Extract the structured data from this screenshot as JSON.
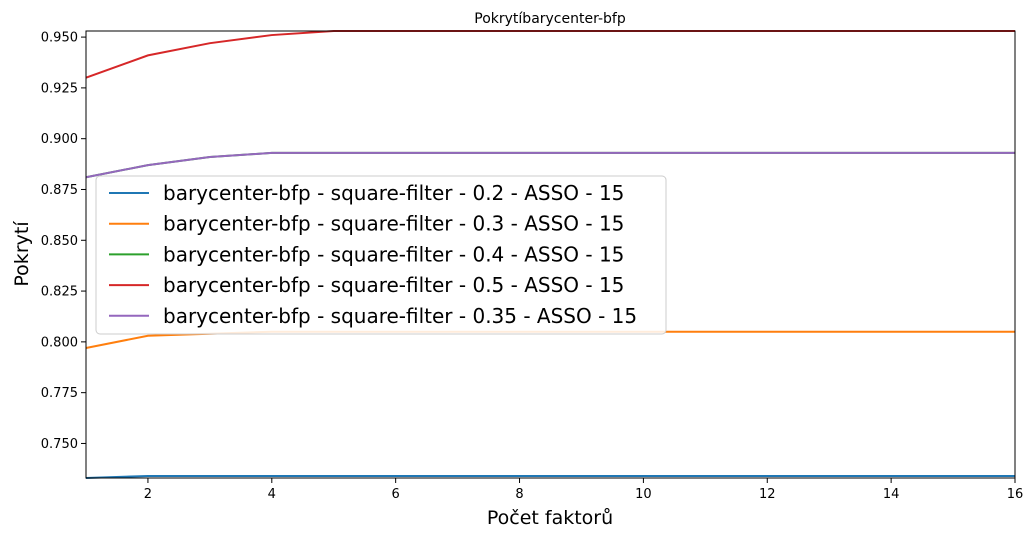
{
  "chart_data": {
    "type": "line",
    "title": "Pokrytíbarycenter-bfp",
    "xlabel": "Počet faktorů",
    "ylabel": "Pokrytí",
    "xlim": [
      1,
      16
    ],
    "ylim": [
      0.733,
      0.953
    ],
    "xticks": [
      2,
      4,
      6,
      8,
      10,
      12,
      14,
      16
    ],
    "yticks": [
      0.75,
      0.775,
      0.8,
      0.825,
      0.85,
      0.875,
      0.9,
      0.925,
      0.95
    ],
    "ytick_labels": [
      "0.750",
      "0.775",
      "0.800",
      "0.825",
      "0.850",
      "0.875",
      "0.900",
      "0.925",
      "0.950"
    ],
    "grid": false,
    "legend_placement": "center-left",
    "x": [
      1,
      2,
      3,
      4,
      5,
      6,
      7,
      8,
      9,
      10,
      11,
      12,
      13,
      14,
      15,
      16
    ],
    "series": [
      {
        "name": "barycenter-bfp - square-filter - 0.2 - ASSO - 15",
        "color": "#1f77b4",
        "values": [
          0.733,
          0.734,
          0.734,
          0.734,
          0.734,
          0.734,
          0.734,
          0.734,
          0.734,
          0.734,
          0.734,
          0.734,
          0.734,
          0.734,
          0.734,
          0.734
        ]
      },
      {
        "name": "barycenter-bfp - square-filter - 0.3 - ASSO - 15",
        "color": "#ff7f0e",
        "values": [
          0.797,
          0.803,
          0.804,
          0.805,
          0.805,
          0.805,
          0.805,
          0.805,
          0.805,
          0.805,
          0.805,
          0.805,
          0.805,
          0.805,
          0.805,
          0.805
        ]
      },
      {
        "name": "barycenter-bfp - square-filter - 0.4 - ASSO - 15",
        "color": "#2ca02c",
        "values": [
          0.881,
          0.887,
          0.891,
          0.893,
          0.893,
          0.893,
          0.893,
          0.893,
          0.893,
          0.893,
          0.893,
          0.893,
          0.893,
          0.893,
          0.893,
          0.893
        ]
      },
      {
        "name": "barycenter-bfp - square-filter - 0.5 - ASSO - 15",
        "color": "#d62728",
        "values": [
          0.93,
          0.941,
          0.947,
          0.951,
          0.953,
          0.953,
          0.953,
          0.953,
          0.953,
          0.953,
          0.953,
          0.953,
          0.953,
          0.953,
          0.953,
          0.953
        ]
      },
      {
        "name": "barycenter-bfp - square-filter - 0.35 - ASSO - 15",
        "color": "#9467bd",
        "values": [
          0.881,
          0.887,
          0.891,
          0.893,
          0.893,
          0.893,
          0.893,
          0.893,
          0.893,
          0.893,
          0.893,
          0.893,
          0.893,
          0.893,
          0.893,
          0.893
        ]
      }
    ]
  }
}
